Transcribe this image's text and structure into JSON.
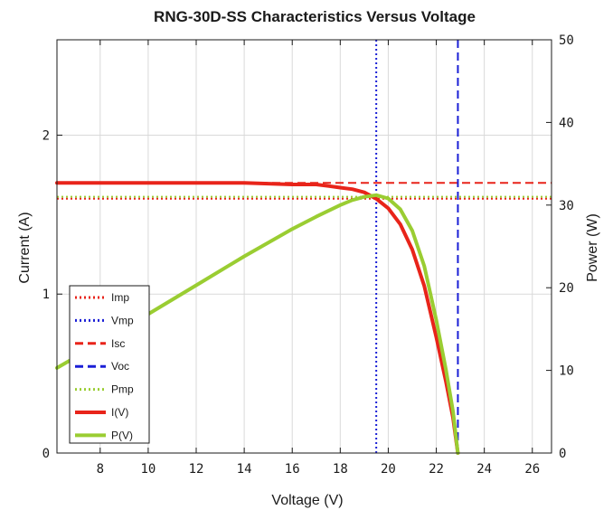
{
  "chart_data": {
    "type": "line",
    "title": "RNG-30D-SS Characteristics Versus Voltage",
    "xlabel": "Voltage (V)",
    "ylabel_left": "Current (A)",
    "ylabel_right": "Power (W)",
    "xlim": [
      6.2,
      26.8
    ],
    "ylim_left": [
      0,
      2.6
    ],
    "ylim_right": [
      0,
      50
    ],
    "x_ticks": [
      8,
      10,
      12,
      14,
      16,
      18,
      20,
      22,
      24,
      26
    ],
    "y_left_ticks": [
      0,
      1,
      2
    ],
    "y_right_ticks": [
      0,
      10,
      20,
      30,
      40,
      50
    ],
    "grid": true,
    "legend_position": "bottom-left",
    "reference_lines": [
      {
        "name": "Imp",
        "orientation": "horizontal",
        "axis": "left",
        "value": 1.6,
        "color": "#e8241a",
        "style": "dotted"
      },
      {
        "name": "Vmp",
        "orientation": "vertical",
        "value": 19.5,
        "color": "#1a1fd6",
        "style": "dotted"
      },
      {
        "name": "Isc",
        "orientation": "horizontal",
        "axis": "left",
        "value": 1.7,
        "color": "#e8241a",
        "style": "dashed"
      },
      {
        "name": "Voc",
        "orientation": "vertical",
        "value": 22.9,
        "color": "#1a1fd6",
        "style": "dashed"
      },
      {
        "name": "Pmp",
        "orientation": "horizontal",
        "axis": "right",
        "value": 31.0,
        "color": "#9acd32",
        "style": "dotted"
      }
    ],
    "series": [
      {
        "name": "I(V)",
        "axis": "left",
        "color": "#e8241a",
        "x": [
          6.2,
          10,
          14,
          16,
          17,
          17.5,
          18,
          18.5,
          19,
          19.5,
          20,
          20.5,
          21,
          21.5,
          22,
          22.4,
          22.7,
          22.9
        ],
        "values": [
          1.7,
          1.7,
          1.7,
          1.69,
          1.69,
          1.68,
          1.67,
          1.66,
          1.64,
          1.6,
          1.54,
          1.44,
          1.28,
          1.05,
          0.73,
          0.45,
          0.22,
          0.0
        ]
      },
      {
        "name": "P(V)",
        "axis": "right",
        "color": "#9acd32",
        "x": [
          6.2,
          8,
          10,
          12,
          14,
          16,
          17,
          18,
          18.5,
          19,
          19.5,
          20,
          20.5,
          21,
          21.5,
          22,
          22.4,
          22.7,
          22.9
        ],
        "values": [
          10.3,
          13.3,
          16.8,
          20.3,
          23.8,
          27.1,
          28.6,
          30.0,
          30.6,
          31.0,
          31.2,
          30.8,
          29.5,
          26.9,
          22.6,
          16.1,
          10.1,
          5.0,
          0.0
        ]
      }
    ]
  }
}
